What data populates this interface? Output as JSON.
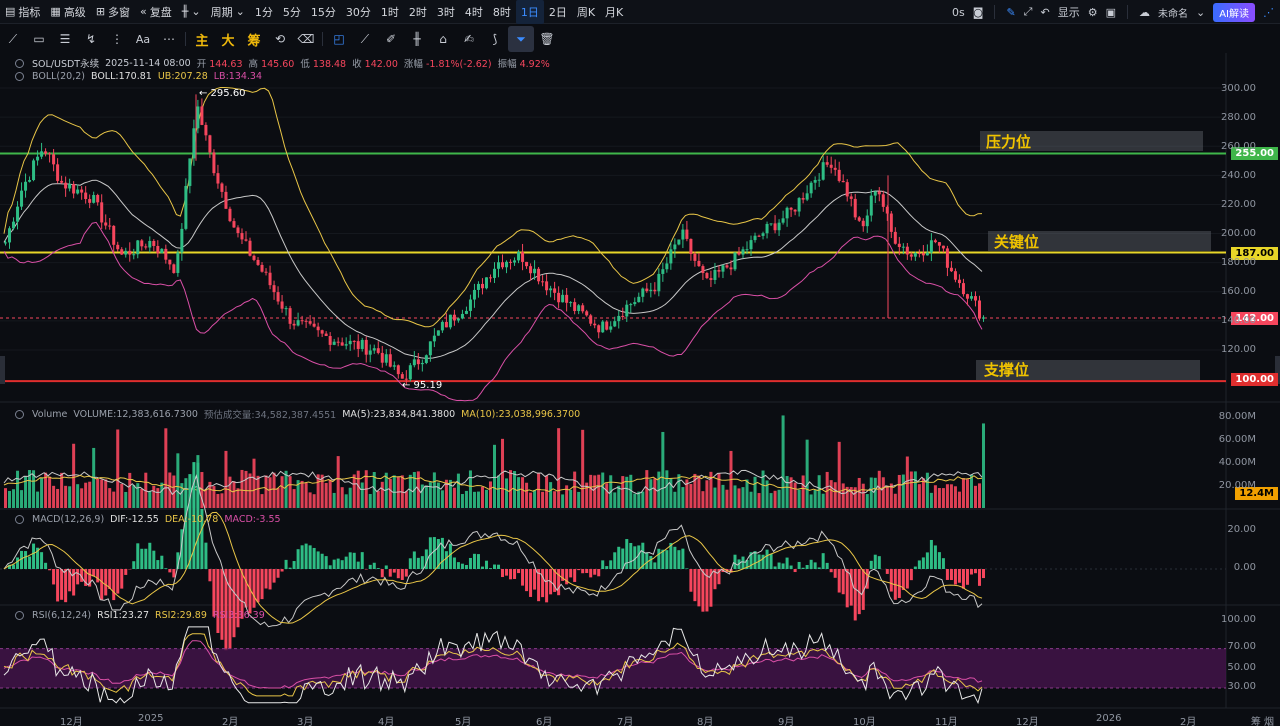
{
  "topbar": {
    "indicator": "指标",
    "advanced": "高级",
    "multi": "多窗",
    "replay": "复盘",
    "period": "周期",
    "intervals": [
      "1分",
      "5分",
      "15分",
      "30分",
      "1时",
      "2时",
      "3时",
      "4时",
      "8时",
      "1日",
      "2日",
      "周K",
      "月K"
    ],
    "active_interval": "1日",
    "countdown": "0s",
    "display": "显示",
    "unnamed": "未命名",
    "ai_button": "AI解读"
  },
  "toolbar": {
    "main": "主",
    "big": "大",
    "chip": "筹"
  },
  "symbol_line": {
    "symbol": "SOL/USDT永续",
    "datetime": "2025-11-14 08:00",
    "open_k": "开",
    "open_v": "144.63",
    "high_k": "高",
    "high_v": "145.60",
    "low_k": "低",
    "low_v": "138.48",
    "close_k": "收",
    "close_v": "142.00",
    "change_k": "涨幅",
    "change_v": "-1.81%(-2.62)",
    "amp_k": "振幅",
    "amp_v": "4.92%"
  },
  "boll": {
    "name": "BOLL(20,2)",
    "mid": "BOLL:170.81",
    "ub": "UB:207.28",
    "lb": "LB:134.34"
  },
  "price_axis": [
    "300.00",
    "280.00",
    "260.00",
    "240.00",
    "220.00",
    "200.00",
    "180.00",
    "160.00",
    "140.00",
    "120.00"
  ],
  "levels": {
    "resistance_label": "压力位",
    "resistance_price": "255.00",
    "key_label": "关键位",
    "key_price": "187.00",
    "support_label": "支撑位",
    "support_price": "100.00",
    "current_price": "142.00"
  },
  "annotations": {
    "high": "← 295.60",
    "low": "← 95.19"
  },
  "volume": {
    "name": "Volume",
    "vol": "VOLUME:12,383,616.7300",
    "est": "预估成交量:34,582,387.4551",
    "ma5": "MA(5):23,834,841.3800",
    "ma10": "MA(10):23,038,996.3700",
    "axis": [
      "80.00M",
      "60.00M",
      "40.00M",
      "20.00M"
    ],
    "current": "12.4M"
  },
  "macd": {
    "name": "MACD(12,26,9)",
    "dif": "DIF:-12.55",
    "dea": "DEA:-10.78",
    "macd": "MACD:-3.55",
    "axis": [
      "20.00",
      "0.00"
    ]
  },
  "rsi": {
    "name": "RSI(6,12,24)",
    "rsi1": "RSI1:23.27",
    "rsi2": "RSI2:29.89",
    "rsi3": "RSI3:36.39",
    "axis": [
      "100.00",
      "70.00",
      "50.00",
      "30.00"
    ]
  },
  "x_axis": [
    "12月",
    "2025",
    "2月",
    "3月",
    "4月",
    "5月",
    "6月",
    "7月",
    "8月",
    "9月",
    "10月",
    "11月",
    "12月",
    "2026",
    "2月"
  ],
  "corner": "筹 烟",
  "colors": {
    "up": "#2ebd85",
    "down": "#f6465d",
    "boll_ub": "#e8c547",
    "boll_mid": "#c8c8c8",
    "boll_lb": "#d94fa6",
    "resistance": "#3fb64a",
    "key": "#e8d628",
    "support": "#e02e2e",
    "accent": "#3b8cff"
  }
}
